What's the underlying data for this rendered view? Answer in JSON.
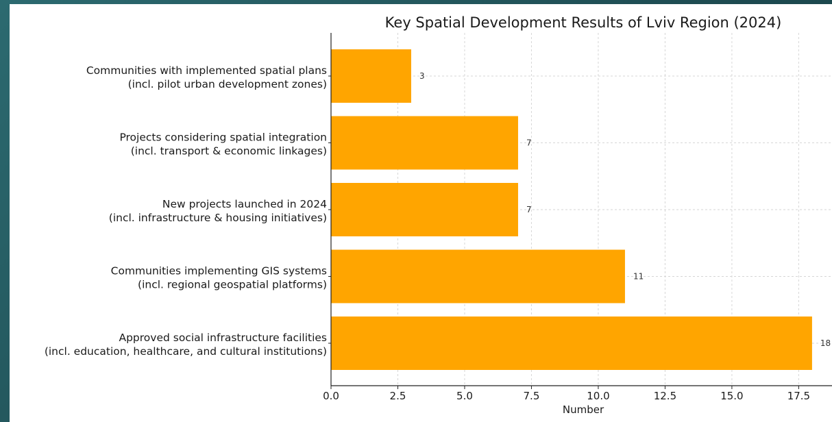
{
  "chart_data": {
    "type": "bar",
    "orientation": "horizontal",
    "title": "Key Spatial Development Results of Lviv Region (2024)",
    "xlabel": "Number",
    "ylabel": "",
    "xlim": [
      0,
      18.9
    ],
    "xticks": [
      "0.0",
      "2.5",
      "5.0",
      "7.5",
      "10.0",
      "12.5",
      "15.0",
      "17.5"
    ],
    "grid": true,
    "bar_color": "#FFA500",
    "categories": [
      [
        "Communities with implemented spatial plans",
        "(incl. pilot urban development zones)"
      ],
      [
        "Projects considering spatial integration",
        "(incl. transport & economic linkages)"
      ],
      [
        "New projects launched in 2024",
        "(incl. infrastructure & housing initiatives)"
      ],
      [
        "Communities implementing GIS systems",
        "(incl. regional geospatial platforms)"
      ],
      [
        "Approved social infrastructure facilities",
        "(incl. education, healthcare, and cultural institutions)"
      ]
    ],
    "values": [
      3,
      7,
      7,
      11,
      18
    ]
  }
}
